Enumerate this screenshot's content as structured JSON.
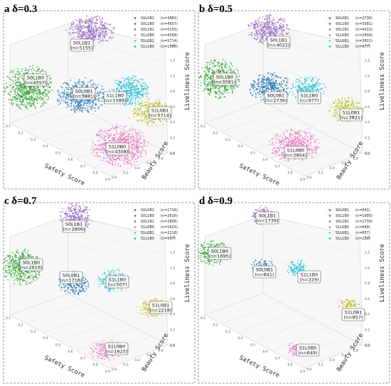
{
  "colors": {
    "S0L0B1": "#1f77b4",
    "S0L1B0": "#2ca02c",
    "S0L1B1": "#9467bd",
    "S1L0B0": "#e377c2",
    "S1L0B1": "#bcbd22",
    "S1L1B0": "#17becf"
  },
  "chart_data": [
    {
      "type": "scatter",
      "panel": "a",
      "title": "δ=0.3",
      "xlabel": "Safety Score",
      "ylabel": "Beauty Score",
      "zlabel": "Liveliness Score",
      "legend_position": "top-right",
      "legend": [
        {
          "label": "S0L0B1",
          "count": "(n=3881)",
          "key": "S0L0B1"
        },
        {
          "label": "S0L1B0",
          "count": "(n=4557)",
          "key": "S0L1B0"
        },
        {
          "label": "S0L1B1",
          "count": "(n=5155)",
          "key": "S0L1B1"
        },
        {
          "label": "S1L0B0",
          "count": "(n=4308)",
          "key": "S1L0B0"
        },
        {
          "label": "S1L0B1",
          "count": "(n=5714)",
          "key": "S1L0B1"
        },
        {
          "label": "S1L1B0",
          "count": "(n=1589)",
          "key": "S1L1B0"
        }
      ],
      "clusters": [
        {
          "key": "S0L1B1",
          "label": "S0L1B1",
          "count": "(n=5155)"
        },
        {
          "key": "S0L1B0",
          "label": "S0L1B0",
          "count": "(n=4557)"
        },
        {
          "key": "S0L0B1",
          "label": "S0L0B1",
          "count": "(n=3881)"
        },
        {
          "key": "S1L1B0",
          "label": "S1L1B0",
          "count": "(n=1589)"
        },
        {
          "key": "S1L0B1",
          "label": "S1L0B1",
          "count": "(n=5714)"
        },
        {
          "key": "S1L0B0",
          "label": "S1L0B0",
          "count": "(n=4308)"
        }
      ]
    },
    {
      "type": "scatter",
      "panel": "b",
      "title": "δ=0.5",
      "xlabel": "Safety Score",
      "ylabel": "Beauty Score",
      "zlabel": "Liveliness Score",
      "legend_position": "top-right",
      "legend": [
        {
          "label": "S0L0B1",
          "count": "(n=2736)",
          "key": "S0L0B1"
        },
        {
          "label": "S0L1B0",
          "count": "(n=3581)",
          "key": "S0L1B0"
        },
        {
          "label": "S0L1B1",
          "count": "(n=4022)",
          "key": "S0L1B1"
        },
        {
          "label": "S1L0B0",
          "count": "(n=2804)",
          "key": "S1L0B0"
        },
        {
          "label": "S1L0B1",
          "count": "(n=3821)",
          "key": "S1L0B1"
        },
        {
          "label": "S1L1B0",
          "count": "(n=977)",
          "key": "S1L1B0"
        }
      ],
      "clusters": [
        {
          "key": "S0L1B1",
          "label": "S0L1B1",
          "count": "(n=4022)"
        },
        {
          "key": "S0L1B0",
          "label": "S0L1B0",
          "count": "(n=3581)"
        },
        {
          "key": "S0L0B1",
          "label": "S0L0B1",
          "count": "(n=2736)"
        },
        {
          "key": "S1L1B0",
          "label": "S1L1B0",
          "count": "(n=977)"
        },
        {
          "key": "S1L0B1",
          "label": "S1L0B1",
          "count": "(n=3821)"
        },
        {
          "key": "S1L0B0",
          "label": "S1L0B0",
          "count": "(n=2804)"
        }
      ]
    },
    {
      "type": "scatter",
      "panel": "c",
      "title": "δ=0.7",
      "xlabel": "Safety Score",
      "ylabel": "Beauty Score",
      "zlabel": "Liveliness Score",
      "legend_position": "top-right",
      "legend": [
        {
          "label": "S0L0B1",
          "count": "(n=1716)",
          "key": "S0L0B1"
        },
        {
          "label": "S0L1B0",
          "count": "(n=2616)",
          "key": "S0L1B0"
        },
        {
          "label": "S0L1B1",
          "count": "(n=2806)",
          "key": "S0L1B1"
        },
        {
          "label": "S1L0B0",
          "count": "(n=1625)",
          "key": "S1L0B0"
        },
        {
          "label": "S1L0B1",
          "count": "(n=2218)",
          "key": "S1L0B1"
        },
        {
          "label": "S1L1B0",
          "count": "(n=507)",
          "key": "S1L1B0"
        }
      ],
      "clusters": [
        {
          "key": "S0L1B1",
          "label": "S0L1B1",
          "count": "(n=2806)"
        },
        {
          "key": "S0L1B0",
          "label": "S0L1B0",
          "count": "(n=2616)"
        },
        {
          "key": "S0L0B1",
          "label": "S0L0B1",
          "count": "(n=1716)"
        },
        {
          "key": "S1L1B0",
          "label": "S1L1B0",
          "count": "(n=507)"
        },
        {
          "key": "S1L0B1",
          "label": "S1L0B1",
          "count": "(n=2218)"
        },
        {
          "key": "S1L0B0",
          "label": "S1L0B0",
          "count": "(n=1625)"
        }
      ]
    },
    {
      "type": "scatter",
      "panel": "d",
      "title": "δ=0.9",
      "xlabel": "Safety Score",
      "ylabel": "Beauty Score",
      "zlabel": "Liveliness Score",
      "legend_position": "top-right",
      "legend": [
        {
          "label": "S0L0B1",
          "count": "(n=841)",
          "key": "S0L0B1"
        },
        {
          "label": "S0L1B0",
          "count": "(n=1695)",
          "key": "S0L1B0"
        },
        {
          "label": "S0L1B1",
          "count": "(n=1739)",
          "key": "S0L1B1"
        },
        {
          "label": "S1L0B0",
          "count": "(n=649)",
          "key": "S1L0B0"
        },
        {
          "label": "S1L0B1",
          "count": "(n=857)",
          "key": "S1L0B1"
        },
        {
          "label": "S1L1B0",
          "count": "(n=229)",
          "key": "S1L1B0"
        }
      ],
      "clusters": [
        {
          "key": "S0L1B1",
          "label": "S0L1B1",
          "count": "(n=1739)"
        },
        {
          "key": "S0L1B0",
          "label": "S0L1B0",
          "count": "(n=1695)"
        },
        {
          "key": "S0L0B1",
          "label": "S0L0B1",
          "count": "(n=841)"
        },
        {
          "key": "S1L1B0",
          "label": "S1L1B0",
          "count": "(n=229)"
        },
        {
          "key": "S1L0B1",
          "label": "S1L0B1",
          "count": "(n=857)"
        },
        {
          "key": "S1L0B0",
          "label": "S1L0B0",
          "count": "(n=649)"
        }
      ]
    }
  ],
  "ticks": {
    "safety": [
      "0.1",
      "0.2",
      "0.3",
      "0.4",
      "0.5",
      "0.6",
      "0.7",
      "0.8",
      "0.9"
    ],
    "beauty": [
      "0.0",
      "0.2",
      "0.4",
      "0.6",
      "0.8",
      "1.0"
    ],
    "liveliness": [
      "0.0",
      "0.2",
      "0.4",
      "0.6",
      "0.8",
      "1.0",
      "1.2",
      "1.4"
    ]
  }
}
